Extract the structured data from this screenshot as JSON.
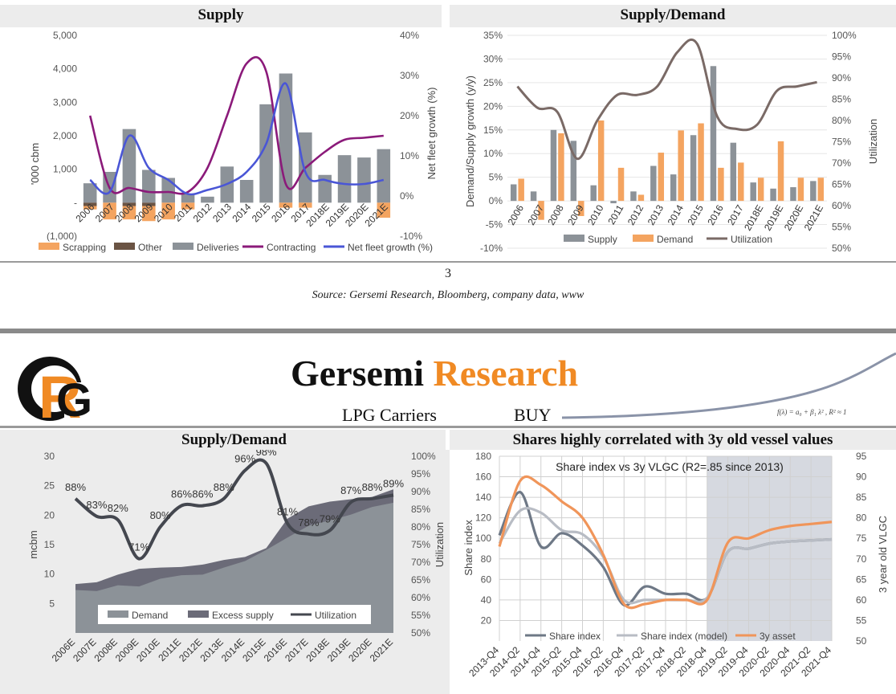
{
  "page": {
    "page_number": "3",
    "source": "Source: Gersemi Research, Bloomberg, company data, www",
    "brand_first": "Gersemi",
    "brand_second": "Research",
    "subject": "LPG Carriers",
    "rating": "BUY",
    "formula": "f(λ) = a₀ + β₁ λ² , R² ≈ 1",
    "colors": {
      "brand_orange": "#f08a24",
      "band_gray": "#ececec"
    }
  },
  "chart_data": [
    {
      "id": "supply",
      "type": "bar",
      "title": "Supply",
      "ylabel": "'000 cbm",
      "y2label": "Net fleet growth (%)",
      "ylim": [
        -1000,
        5000
      ],
      "y2lim": [
        -10,
        40
      ],
      "yticks": [
        "5,000",
        "4,000",
        "3,000",
        "2,000",
        "1,000",
        "-",
        "(1,000)"
      ],
      "y2ticks": [
        "40%",
        "30%",
        "20%",
        "10%",
        "0%",
        "-10%"
      ],
      "categories": [
        "2006",
        "2007",
        "2008",
        "2009",
        "2010",
        "2011",
        "2012",
        "2013",
        "2014",
        "2015",
        "2016",
        "2017",
        "2018E",
        "2019E",
        "2020E",
        "2021E"
      ],
      "series": [
        {
          "name": "Scrapping",
          "type": "bar",
          "color": "#f4a460",
          "values": [
            -100,
            -500,
            -400,
            -450,
            -500,
            -200,
            0,
            0,
            0,
            0,
            -150,
            -150,
            0,
            0,
            0,
            -450
          ]
        },
        {
          "name": "Other",
          "type": "bar",
          "color": "#6b5444",
          "values": [
            -100,
            0,
            -100,
            -100,
            0,
            0,
            0,
            0,
            0,
            0,
            0,
            0,
            0,
            0,
            0,
            0
          ]
        },
        {
          "name": "Deliveries",
          "type": "bar",
          "color": "#8c9298",
          "values": [
            580,
            920,
            2200,
            980,
            740,
            270,
            180,
            1080,
            680,
            2940,
            3860,
            2100,
            830,
            1420,
            1350,
            1600
          ]
        },
        {
          "name": "Contracting",
          "type": "line",
          "axis": "right",
          "color": "#8b1a7a",
          "values": [
            20,
            2,
            2,
            1,
            1,
            1,
            7,
            20,
            33,
            31,
            3,
            7,
            11,
            14,
            14.5,
            15
          ]
        },
        {
          "name": "Net fleet growth (%)",
          "type": "line",
          "axis": "right",
          "color": "#4a56d6",
          "values": [
            4,
            1,
            15,
            7,
            4,
            0.5,
            1.5,
            3,
            6,
            13,
            28,
            6,
            4,
            3,
            3,
            4
          ]
        }
      ]
    },
    {
      "id": "supply_demand_yoy",
      "type": "bar",
      "title": "Supply/Demand",
      "ylabel": "Demand/Supply growth (y/y)",
      "y2label": "Utilization",
      "ylim": [
        -10,
        35
      ],
      "y2lim": [
        50,
        100
      ],
      "yticks": [
        "35%",
        "30%",
        "25%",
        "20%",
        "15%",
        "10%",
        "5%",
        "0%",
        "-5%",
        "-10%"
      ],
      "y2ticks": [
        "100%",
        "95%",
        "90%",
        "85%",
        "80%",
        "75%",
        "70%",
        "65%",
        "60%",
        "55%",
        "50%"
      ],
      "categories": [
        "2006",
        "2007",
        "2008",
        "2009",
        "2010",
        "2011",
        "2012",
        "2013",
        "2014",
        "2015",
        "2016",
        "2017",
        "2018E",
        "2019E",
        "2020E",
        "2021E"
      ],
      "series": [
        {
          "name": "Supply",
          "type": "bar",
          "color": "#8c9298",
          "values": [
            3.5,
            2,
            15,
            12.7,
            3.3,
            -0.5,
            2,
            7.4,
            5.6,
            13.9,
            28.5,
            12.3,
            3.9,
            2.6,
            2.9,
            4.2
          ]
        },
        {
          "name": "Demand",
          "type": "bar",
          "color": "#f4a460",
          "values": [
            4.7,
            -4,
            14.3,
            -3.2,
            17,
            7,
            1.3,
            10.2,
            14.9,
            16.4,
            7,
            8.1,
            4.9,
            12.6,
            4.9,
            4.9
          ]
        },
        {
          "name": "Utilization",
          "type": "line",
          "axis": "right",
          "color": "#7a6a66",
          "values": [
            88,
            83,
            82,
            71,
            80,
            86,
            86,
            88,
            96,
            98,
            81,
            78,
            79,
            87,
            88,
            89
          ]
        }
      ]
    },
    {
      "id": "supply_demand_mcbm",
      "type": "area",
      "title": "Supply/Demand",
      "ylabel": "mcbm",
      "y2label": "Utilization",
      "ylim": [
        0,
        30
      ],
      "y2lim": [
        50,
        100
      ],
      "yticks": [
        "30",
        "25",
        "20",
        "15",
        "10",
        "5"
      ],
      "y2ticks": [
        "100%",
        "95%",
        "90%",
        "85%",
        "80%",
        "75%",
        "70%",
        "65%",
        "60%",
        "55%",
        "50%"
      ],
      "categories": [
        "2006E",
        "2007E",
        "2008E",
        "2009E",
        "2010E",
        "2011E",
        "2012E",
        "2013E",
        "2014E",
        "2015E",
        "2016E",
        "2017E",
        "2018E",
        "2019E",
        "2020E",
        "2021E"
      ],
      "series": [
        {
          "name": "Demand",
          "type": "area",
          "color": "#8c9298",
          "values": [
            7.3,
            7.1,
            8.1,
            7.9,
            9.2,
            9.8,
            9.9,
            11.1,
            12.2,
            14.1,
            16.2,
            18.2,
            19.1,
            20.1,
            21.4,
            22.1
          ]
        },
        {
          "name": "Excess supply",
          "type": "area",
          "color": "#6b6b78",
          "values": [
            8.3,
            8.6,
            9.9,
            10.9,
            11.1,
            11.2,
            11.6,
            12.4,
            12.9,
            14.4,
            19.4,
            21.5,
            22.3,
            22.7,
            23.1,
            24.4
          ]
        },
        {
          "name": "Utilization",
          "type": "line",
          "axis": "right",
          "color": "#44474f",
          "values": [
            88,
            83,
            82,
            71,
            80,
            86,
            86,
            88,
            96,
            98,
            81,
            78,
            79,
            87,
            88,
            89
          ],
          "labels": [
            "88%",
            "83%",
            "82%",
            "71%",
            "80%",
            "86%",
            "86%",
            "88%",
            "96%",
            "98%",
            "81%",
            "78%",
            "79%",
            "87%",
            "88%",
            "89%"
          ]
        }
      ]
    },
    {
      "id": "shares_vs_vessel",
      "type": "line",
      "title": "Shares highly correlated with 3y old vessel values",
      "annotation": "Share index vs 3y VLGC (R2=.85 since 2013)",
      "ylabel": "Share index",
      "y2label": "3 year old VLGC",
      "ylim": [
        0,
        180
      ],
      "y2lim": [
        50,
        95
      ],
      "yticks": [
        "180",
        "160",
        "140",
        "120",
        "100",
        "80",
        "60",
        "40",
        "20"
      ],
      "y2ticks": [
        "95",
        "90",
        "85",
        "80",
        "75",
        "70",
        "65",
        "60",
        "55",
        "50"
      ],
      "categories": [
        "2013-Q4",
        "2014-Q2",
        "2014-Q4",
        "2015-Q2",
        "2015-Q4",
        "2016-Q2",
        "2016-Q4",
        "2017-Q2",
        "2017-Q4",
        "2018-Q2",
        "2018-Q4",
        "2019-Q2",
        "2019-Q4",
        "2020-Q2",
        "2020-Q4",
        "2021-Q2",
        "2021-Q4"
      ],
      "shaded_from": "2018-Q4",
      "series": [
        {
          "name": "Share index",
          "color": "#6e7886",
          "axis": "left",
          "values": [
            103,
            145,
            92,
            105,
            93,
            72,
            35,
            53,
            46,
            46,
            42,
            87,
            90,
            95,
            97,
            98,
            99
          ]
        },
        {
          "name": "Share index (model)",
          "color": "#b8bcc4",
          "axis": "left",
          "values": [
            95,
            127,
            125,
            108,
            104,
            82,
            40,
            40,
            40,
            40,
            42,
            87,
            90,
            95,
            97,
            98,
            99
          ]
        },
        {
          "name": "3y asset",
          "color": "#f0955a",
          "axis": "right",
          "values": [
            73,
            89,
            88,
            84,
            80,
            71,
            59,
            59,
            60,
            60,
            60,
            74,
            75,
            77,
            78,
            78.5,
            79
          ]
        }
      ]
    }
  ]
}
